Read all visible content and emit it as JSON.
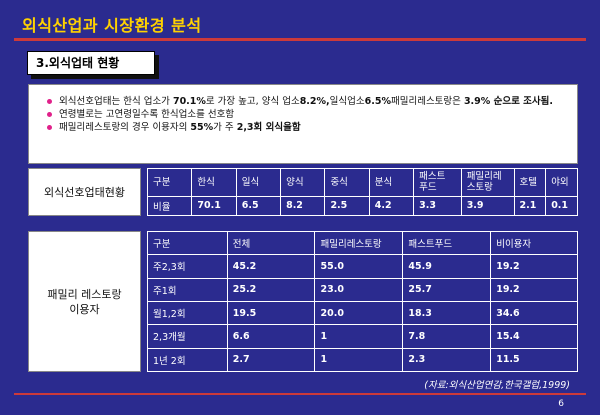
{
  "title": "외식산업과 시장환경 분석",
  "section": "3.외식업태 현황",
  "summary": [
    {
      "parts": [
        {
          "t": "외식선호업태는 한식 업소가 "
        },
        {
          "t": "70.1%",
          "b": true
        },
        {
          "t": "로 가장 높고, 양식 업소"
        },
        {
          "t": "8.2%,",
          "b": true
        },
        {
          "t": "일식업소"
        },
        {
          "t": "6.5%",
          "b": true
        },
        {
          "t": "패밀리레스토랑은 "
        },
        {
          "t": "3.9%",
          "b": true
        },
        {
          "t": " 순으로 조사됨.",
          "b": true
        }
      ]
    },
    {
      "parts": [
        {
          "t": "연령별로는 고연령일수록 한식업소를 선호함"
        }
      ]
    },
    {
      "parts": [
        {
          "t": "패밀리레스토랑의 경우 이용자의 "
        },
        {
          "t": "55%",
          "b": true
        },
        {
          "t": "가 주 "
        },
        {
          "t": "2,3",
          "b": true
        },
        {
          "t": "회 외식을함",
          "b": true
        }
      ]
    }
  ],
  "table1": {
    "label": "외식선호업태현황",
    "header": [
      "구분",
      "한식",
      "일식",
      "양식",
      "중식",
      "분식",
      "패스트푸드",
      "패밀리레스토랑",
      "호텔",
      "야외"
    ],
    "header_display": [
      "구분",
      "한식",
      "일식",
      "양식",
      "중식",
      "분식",
      "패스트\n푸드",
      "패밀리레\n스토랑",
      "호텔",
      "야외"
    ],
    "rows": [
      [
        "비율",
        "70.1",
        "6.5",
        "8.2",
        "2.5",
        "4.2",
        "3.3",
        "3.9",
        "2.1",
        "0.1"
      ]
    ]
  },
  "table2": {
    "label": "패밀리 레스토랑\n이용자",
    "header": [
      "구분",
      "전체",
      "패밀리레스토랑",
      "패스트푸드",
      "비이용자"
    ],
    "rows": [
      [
        "주2,3회",
        "45.2",
        "55.0",
        "45.9",
        "19.2"
      ],
      [
        "주1회",
        "25.2",
        "23.0",
        "25.7",
        "19.2"
      ],
      [
        "월1,2회",
        "19.5",
        "20.0",
        "18.3",
        "34.6"
      ],
      [
        "2,3개월",
        "6.6",
        "1",
        "7.8",
        "15.4"
      ],
      [
        "1년 2회",
        "2.7",
        "1",
        "2.3",
        "11.5"
      ]
    ]
  },
  "source": "(자료:외식산업연감,한국갤럽,1999)",
  "page_number": "6",
  "colors": {
    "background": "#2b2b8f",
    "title": "#ffd200",
    "rule": "#cc3a3a",
    "bullet": "#e0218a"
  }
}
